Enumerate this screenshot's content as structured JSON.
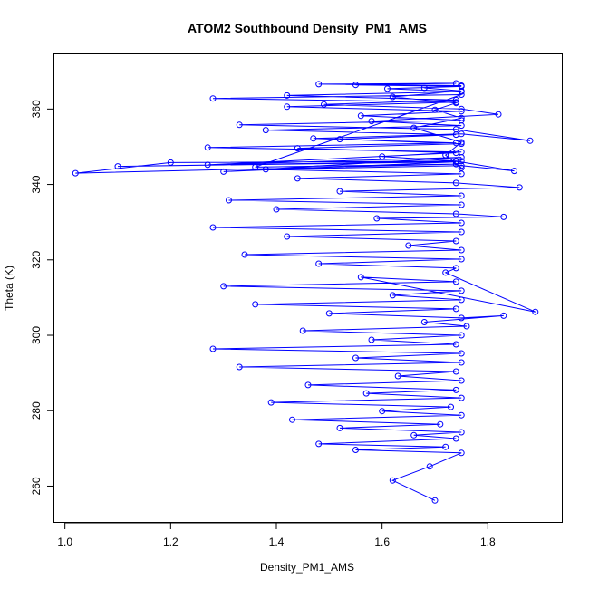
{
  "chart_data": {
    "type": "scatter",
    "title": "ATOM2 Southbound Density_PM1_AMS",
    "xlabel": "Density_PM1_AMS",
    "ylabel": "Theta (K)",
    "xlim": [
      0.98,
      1.94
    ],
    "ylim": [
      250.5,
      374.5
    ],
    "xticks": [
      1.0,
      1.2,
      1.4,
      1.6,
      1.8
    ],
    "xtick_labels": [
      "1.0",
      "1.2",
      "1.4",
      "1.6",
      "1.8"
    ],
    "yticks": [
      260,
      280,
      300,
      320,
      340,
      360
    ],
    "ytick_labels": [
      "260",
      "280",
      "300",
      "320",
      "340",
      "360"
    ],
    "grid": false,
    "legend": "none",
    "markers": "open-circles-connected-by-lines",
    "color": "#0000ff",
    "series": [
      {
        "x": [
          1.7,
          1.62,
          1.69,
          1.75,
          1.55,
          1.72,
          1.48,
          1.74,
          1.66,
          1.75,
          1.52,
          1.71,
          1.43,
          1.75,
          1.6,
          1.73,
          1.39,
          1.75,
          1.57,
          1.74,
          1.46,
          1.75,
          1.63,
          1.74,
          1.33,
          1.75,
          1.55,
          1.75,
          1.28,
          1.74,
          1.58,
          1.75,
          1.45,
          1.76,
          1.68,
          1.83,
          1.75,
          1.5,
          1.74,
          1.36,
          1.75,
          1.62,
          1.75,
          1.3,
          1.74,
          1.56,
          1.89,
          1.72,
          1.74,
          1.48,
          1.75,
          1.34,
          1.75,
          1.65,
          1.74,
          1.42,
          1.75,
          1.28,
          1.75,
          1.59,
          1.83,
          1.74,
          1.4,
          1.75,
          1.31,
          1.75,
          1.52,
          1.86,
          1.74,
          1.44,
          1.75,
          1.38,
          1.75,
          1.85,
          1.74,
          1.6,
          1.75,
          1.27,
          1.74,
          1.47,
          1.75,
          1.88,
          1.74,
          1.33,
          1.75,
          1.56,
          1.75,
          1.42,
          1.74,
          1.28,
          1.75,
          1.36,
          1.74,
          1.02,
          1.2,
          1.75,
          1.1,
          1.74,
          1.3,
          1.75,
          1.27,
          1.74,
          1.44,
          1.75,
          1.52,
          1.74,
          1.38,
          1.75,
          1.58,
          1.82,
          1.75,
          1.49,
          1.74,
          1.42,
          1.75,
          1.61,
          1.75,
          1.55,
          1.74,
          1.48,
          1.75,
          1.68,
          1.75,
          1.62,
          1.74,
          1.7,
          1.75,
          1.66,
          1.75,
          1.72,
          1.75
        ],
        "y": [
          256.2,
          261.5,
          265.2,
          268.8,
          269.6,
          270.4,
          271.2,
          272.6,
          273.5,
          274.3,
          275.4,
          276.4,
          277.6,
          278.8,
          279.9,
          281.0,
          282.2,
          283.4,
          284.6,
          285.5,
          286.8,
          288.0,
          289.2,
          290.4,
          291.6,
          292.8,
          294.0,
          295.2,
          296.4,
          297.6,
          298.8,
          300.0,
          301.2,
          302.4,
          303.5,
          305.2,
          304.6,
          305.8,
          307.0,
          308.2,
          309.4,
          310.6,
          311.8,
          313.0,
          314.2,
          315.4,
          306.2,
          316.6,
          317.8,
          319.0,
          320.2,
          321.4,
          322.6,
          323.8,
          325.0,
          326.2,
          327.4,
          328.6,
          329.8,
          331.0,
          331.4,
          332.2,
          333.4,
          334.6,
          335.8,
          337.0,
          338.2,
          339.2,
          340.4,
          341.6,
          342.8,
          344.0,
          345.0,
          343.6,
          346.2,
          347.4,
          348.6,
          349.8,
          351.0,
          352.2,
          353.4,
          351.6,
          354.6,
          355.8,
          357.0,
          358.2,
          359.4,
          360.6,
          361.8,
          362.8,
          363.8,
          344.6,
          345.4,
          343.0,
          345.8,
          346.2,
          344.8,
          346.0,
          343.4,
          347.2,
          345.2,
          348.4,
          349.6,
          350.8,
          352.0,
          353.2,
          354.4,
          355.6,
          356.8,
          358.6,
          360.0,
          361.2,
          362.4,
          363.6,
          364.6,
          365.4,
          366.0,
          366.4,
          366.8,
          366.6,
          366.2,
          365.6,
          364.8,
          363.2,
          361.6,
          359.8,
          357.6,
          355.0,
          351.2,
          347.8,
          344.4
        ]
      }
    ]
  }
}
